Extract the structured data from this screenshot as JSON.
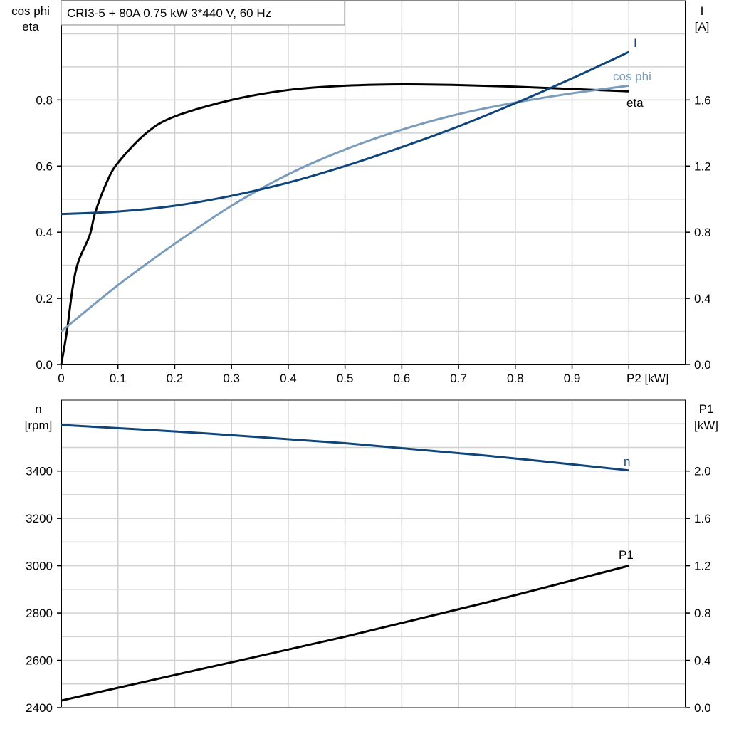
{
  "title": "CRI3-5 + 80A   0.75 kW   3*440 V, 60 Hz",
  "colors": {
    "eta": "#000000",
    "cos_phi": "#7a9cbc",
    "I": "#0f457a",
    "n": "#0f457a",
    "P1": "#000000"
  },
  "chart_data": [
    {
      "type": "line",
      "xlabel": "P2 [kW]",
      "xlim": [
        0,
        1.1
      ],
      "x_ticks": [
        "0",
        "0.1",
        "0.2",
        "0.3",
        "0.4",
        "0.5",
        "0.6",
        "0.7",
        "0.8",
        "0.9"
      ],
      "ylabel_left": [
        "cos phi",
        "eta"
      ],
      "ylim_left": [
        0,
        1.1
      ],
      "y_ticks_left": [
        "0.0",
        "0.2",
        "0.4",
        "0.6",
        "0.8"
      ],
      "ylabel_right": [
        "I",
        "[A]"
      ],
      "ylim_right": [
        0,
        2.2
      ],
      "y_ticks_right": [
        "0.0",
        "0.4",
        "0.8",
        "1.2",
        "1.6"
      ],
      "grid": true,
      "series": [
        {
          "name": "eta",
          "axis": "left",
          "x": [
            0,
            0.01,
            0.02,
            0.03,
            0.05,
            0.06,
            0.08,
            0.1,
            0.15,
            0.2,
            0.3,
            0.4,
            0.5,
            0.6,
            0.7,
            0.8,
            0.9,
            1.0
          ],
          "y": [
            0,
            0.1,
            0.23,
            0.31,
            0.39,
            0.46,
            0.55,
            0.61,
            0.7,
            0.75,
            0.8,
            0.83,
            0.843,
            0.847,
            0.845,
            0.84,
            0.833,
            0.826
          ]
        },
        {
          "name": "cos phi",
          "axis": "left",
          "x": [
            0,
            0.1,
            0.2,
            0.3,
            0.4,
            0.5,
            0.6,
            0.7,
            0.8,
            0.9,
            1.0
          ],
          "y": [
            0.1,
            0.24,
            0.365,
            0.48,
            0.575,
            0.65,
            0.71,
            0.757,
            0.792,
            0.82,
            0.843
          ]
        },
        {
          "name": "I",
          "axis": "right",
          "x": [
            0,
            0.1,
            0.2,
            0.3,
            0.4,
            0.5,
            0.6,
            0.7,
            0.8,
            0.9,
            1.0
          ],
          "y": [
            0.91,
            0.925,
            0.96,
            1.02,
            1.1,
            1.2,
            1.315,
            1.44,
            1.58,
            1.73,
            1.89
          ]
        }
      ]
    },
    {
      "type": "line",
      "xlim": [
        0,
        1.1
      ],
      "ylabel_left": [
        "n",
        "[rpm]"
      ],
      "ylim_left": [
        2400,
        3700
      ],
      "y_ticks_left": [
        "2400",
        "2600",
        "2800",
        "3000",
        "3200",
        "3400"
      ],
      "ylabel_right": [
        "P1",
        "[kW]"
      ],
      "ylim_right": [
        0,
        2.6
      ],
      "y_ticks_right": [
        "0.0",
        "0.4",
        "0.8",
        "1.2",
        "1.6",
        "2.0"
      ],
      "grid": true,
      "series": [
        {
          "name": "n",
          "axis": "left",
          "x": [
            0,
            0.25,
            0.5,
            0.75,
            1.0
          ],
          "y": [
            3595,
            3560,
            3518,
            3465,
            3403
          ]
        },
        {
          "name": "P1",
          "axis": "right",
          "x": [
            0,
            0.25,
            0.5,
            0.75,
            1.0
          ],
          "y": [
            0.06,
            0.33,
            0.6,
            0.89,
            1.2
          ]
        }
      ]
    }
  ]
}
